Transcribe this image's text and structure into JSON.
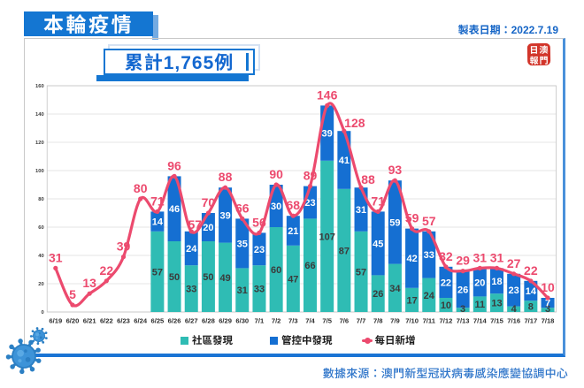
{
  "header": {
    "title": "本輪疫情",
    "date_label": "製表日期：2022.7.19",
    "cumulative_label": "累計1,765例",
    "seal": {
      "top_left": "日",
      "top_right": "澳",
      "bottom_left": "報",
      "bottom_right": "門"
    }
  },
  "footer": {
    "source_label": "數據來源：澳門新型冠狀病毒感染應變協調中心"
  },
  "legend": {
    "items": [
      {
        "label": "社區發現",
        "marker": "square",
        "color": "#2fbcb4"
      },
      {
        "label": "管控中發現",
        "marker": "square",
        "color": "#156fd2"
      },
      {
        "label": "每日新增",
        "marker": "line-dot",
        "color": "#ec4a6e"
      }
    ]
  },
  "colors": {
    "banner_blue": "#1476d2",
    "banner_echo": "#74abe2",
    "bar_community": "#2fbcb4",
    "bar_quarantine": "#156fd2",
    "line_pink": "#ec4a6e",
    "text_blue": "#1565c6",
    "source_blue": "#2d74c9",
    "seal_red": "#d2352a",
    "grid_gray": "#dcdcdc"
  },
  "chart_data": {
    "type": "bar",
    "subtype": "stacked-bars-with-line",
    "title": "本輪疫情 累計1,765例",
    "categories": [
      "6/19",
      "6/20",
      "6/21",
      "6/22",
      "6/23",
      "6/24",
      "6/25",
      "6/26",
      "6/27",
      "6/28",
      "6/29",
      "6/30",
      "7/1",
      "7/2",
      "7/3",
      "7/4",
      "7/5",
      "7/6",
      "7/7",
      "7/8",
      "7/9",
      "7/10",
      "7/11",
      "7/12",
      "7/13",
      "7/14",
      "7/15",
      "7/16",
      "7/17",
      "7/18"
    ],
    "series": [
      {
        "name": "社區發現",
        "type": "bar",
        "color": "#2fbcb4",
        "label_color": "#3b3b3b",
        "values": [
          null,
          null,
          null,
          null,
          null,
          null,
          57,
          50,
          33,
          50,
          49,
          31,
          33,
          60,
          47,
          66,
          107,
          87,
          57,
          26,
          34,
          17,
          24,
          10,
          3,
          11,
          13,
          4,
          8,
          3
        ]
      },
      {
        "name": "管控中發現",
        "type": "bar",
        "color": "#156fd2",
        "label_color": "#ffffff",
        "values": [
          null,
          null,
          null,
          null,
          null,
          null,
          14,
          46,
          24,
          20,
          39,
          35,
          23,
          30,
          21,
          23,
          39,
          41,
          31,
          45,
          59,
          42,
          33,
          22,
          26,
          20,
          18,
          23,
          14,
          7
        ]
      },
      {
        "name": "每日新增",
        "type": "line",
        "color": "#ec4a6e",
        "label_color": "#ec4a6e",
        "values": [
          31,
          5,
          13,
          22,
          39,
          80,
          71,
          96,
          57,
          70,
          88,
          66,
          56,
          90,
          68,
          89,
          146,
          128,
          88,
          71,
          93,
          59,
          57,
          32,
          29,
          31,
          31,
          27,
          22,
          10
        ]
      }
    ],
    "ylim": [
      0,
      160
    ],
    "ytick_step": 20,
    "grid": "horizontal",
    "legend_position": "bottom",
    "line_label_offsets": {
      "8": [
        4,
        4
      ],
      "17": [
        12,
        3
      ],
      "18": [
        8,
        3
      ]
    }
  }
}
